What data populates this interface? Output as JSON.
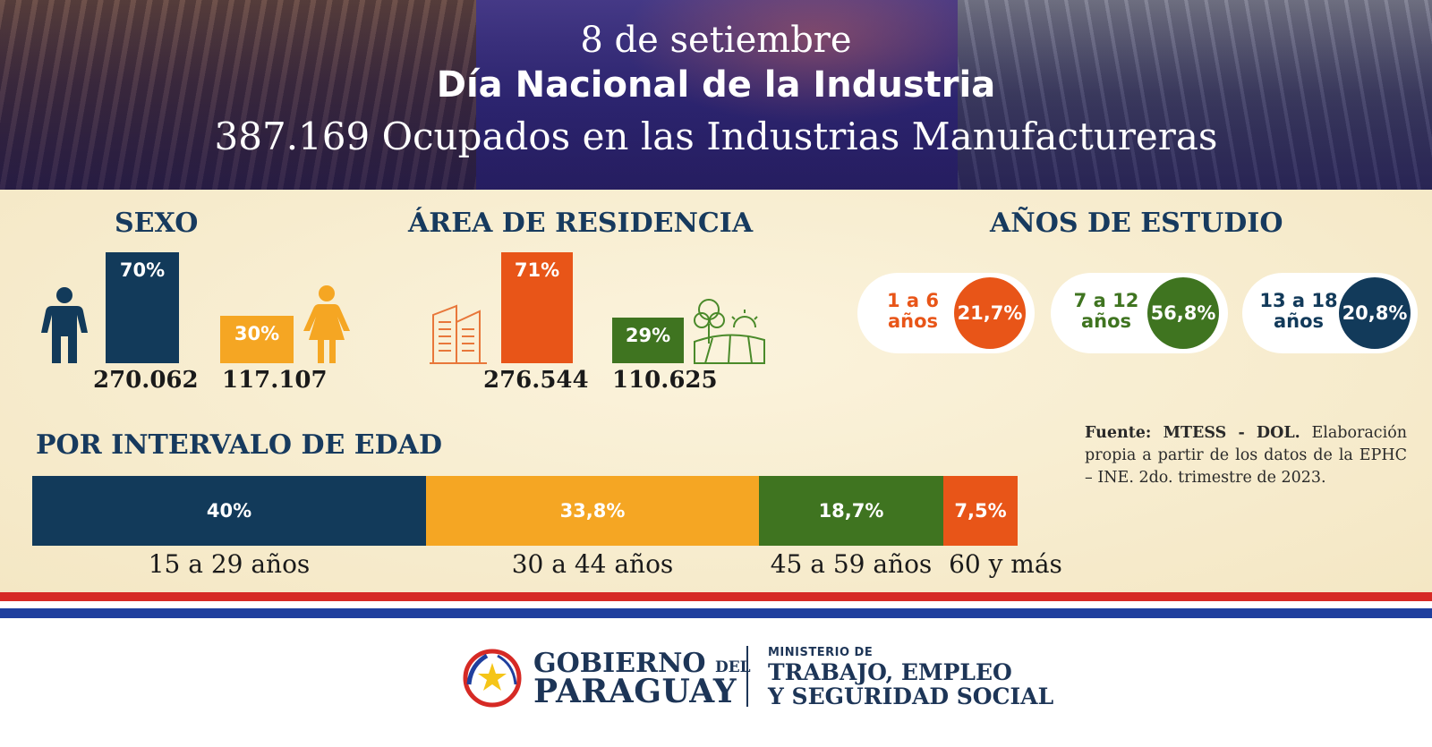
{
  "header": {
    "date": "8 de setiembre",
    "event": "Día Nacional de la Industria",
    "headline": "387.169 Ocupados en las Industrias Manufactureras"
  },
  "colors": {
    "navy": "#123a5a",
    "orange_dark": "#e85518",
    "yellow": "#f5a623",
    "green": "#3f7420",
    "title": "#173a5e",
    "flag_red": "#d62a25",
    "flag_blue": "#1f3f9e"
  },
  "icons": {
    "male": "male-person-icon",
    "female": "female-person-icon",
    "urban": "city-buildings-icon",
    "rural": "rural-farm-icon",
    "logo": "paraguay-coat-of-arms-icon"
  },
  "chart_data": [
    {
      "type": "bar",
      "title": "SEXO",
      "categories": [
        "Hombres",
        "Mujeres"
      ],
      "values": [
        70,
        30
      ],
      "value_labels": [
        "70%",
        "30%"
      ],
      "counts": [
        "270.062",
        "117.107"
      ],
      "colors": [
        "#123a5a",
        "#f5a623"
      ]
    },
    {
      "type": "bar",
      "title": "ÁREA DE RESIDENCIA",
      "categories": [
        "Urbana",
        "Rural"
      ],
      "values": [
        71,
        29
      ],
      "value_labels": [
        "71%",
        "29%"
      ],
      "counts": [
        "276.544",
        "110.625"
      ],
      "colors": [
        "#e85518",
        "#3f7420"
      ]
    },
    {
      "type": "table",
      "title": "AÑOS DE ESTUDIO",
      "items": [
        {
          "label_line1": "1 a 6",
          "label_line2": "años",
          "value": 21.7,
          "value_label": "21,7%",
          "color": "#e85518"
        },
        {
          "label_line1": "7 a 12",
          "label_line2": "años",
          "value": 56.8,
          "value_label": "56,8%",
          "color": "#3f7420"
        },
        {
          "label_line1": "13 a 18",
          "label_line2": "años",
          "value": 20.8,
          "value_label": "20,8%",
          "color": "#123a5a"
        }
      ]
    },
    {
      "type": "bar",
      "title": "POR INTERVALO DE EDAD",
      "categories": [
        "15 a 29 años",
        "30 a 44 años",
        "45 a 59 años",
        "60 y más"
      ],
      "values": [
        40,
        33.8,
        18.7,
        7.5
      ],
      "value_labels": [
        "40%",
        "33,8%",
        "18,7%",
        "7,5%"
      ],
      "colors": [
        "#123a5a",
        "#f5a623",
        "#3f7420",
        "#e85518"
      ]
    }
  ],
  "source": {
    "bold": "Fuente: MTESS - DOL.",
    "text": "Elaboración propia a partir de los datos de la EPHC – INE. 2do. trimestre de 2023."
  },
  "footer": {
    "gobierno_line1": "GOBIERNO",
    "gobierno_del": "DEL",
    "gobierno_line2": "PARAGUAY",
    "ministry_line1": "MINISTERIO DE",
    "ministry_line2": "TRABAJO, EMPLEO",
    "ministry_line3": "Y SEGURIDAD SOCIAL"
  }
}
